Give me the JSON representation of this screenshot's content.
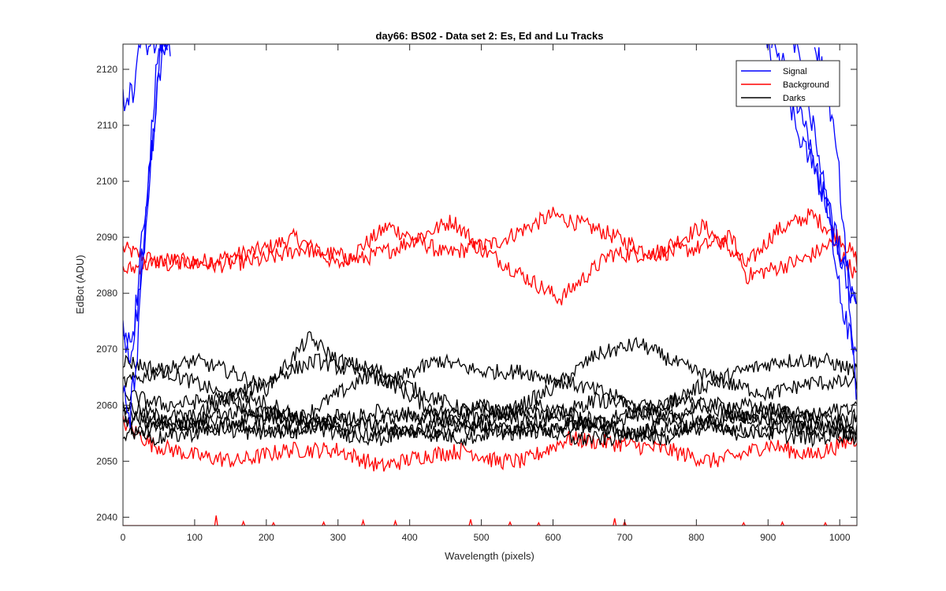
{
  "chart_data": {
    "type": "line",
    "title": "day66: BS02 - Data set 2: Es, Ed and Lu Tracks",
    "xlabel": "Wavelength (pixels)",
    "ylabel": "EdBot (ADU)",
    "xlim": [
      0,
      1024
    ],
    "ylim": [
      2038.5,
      2124.5
    ],
    "xticks": [
      "0",
      "100",
      "200",
      "300",
      "400",
      "500",
      "600",
      "700",
      "800",
      "900",
      "1000"
    ],
    "yticks": [
      "2040",
      "2050",
      "2060",
      "2070",
      "2080",
      "2090",
      "2100",
      "2110",
      "2120"
    ],
    "grid": false,
    "legend_position": "top-right",
    "legend": [
      {
        "label": "Signal",
        "color": "#0000ff"
      },
      {
        "label": "Background",
        "color": "#ff0000"
      },
      {
        "label": "Darks",
        "color": "#000000"
      }
    ],
    "series": [
      {
        "group": "Signal",
        "color": "#0000ff",
        "noise": 2.5,
        "points": [
          [
            0,
            2114
          ],
          [
            8,
            2116
          ],
          [
            14,
            2115
          ],
          [
            20,
            2122
          ],
          [
            26,
            2125
          ],
          [
            40,
            2125
          ],
          [
            55,
            2125
          ],
          [
            62,
            2125
          ]
        ]
      },
      {
        "group": "Signal",
        "color": "#0000ff",
        "noise": 3,
        "points": [
          [
            0,
            2076
          ],
          [
            12,
            2068
          ],
          [
            22,
            2080
          ],
          [
            32,
            2095
          ],
          [
            44,
            2110
          ],
          [
            52,
            2125
          ],
          [
            62,
            2125
          ]
        ]
      },
      {
        "group": "Signal",
        "color": "#0000ff",
        "noise": 3,
        "points": [
          [
            0,
            2062
          ],
          [
            10,
            2058
          ],
          [
            20,
            2070
          ],
          [
            30,
            2088
          ],
          [
            38,
            2102
          ],
          [
            48,
            2115
          ],
          [
            58,
            2125
          ],
          [
            64,
            2125
          ]
        ]
      },
      {
        "group": "Signal",
        "color": "#0000ff",
        "noise": 3,
        "points": [
          [
            0,
            2070
          ],
          [
            14,
            2072
          ],
          [
            24,
            2085
          ],
          [
            34,
            2100
          ],
          [
            46,
            2118
          ],
          [
            56,
            2125
          ],
          [
            66,
            2125
          ]
        ]
      },
      {
        "group": "Signal",
        "color": "#0000ff",
        "noise": 2.5,
        "points": [
          [
            905,
            2125
          ],
          [
            930,
            2118
          ],
          [
            955,
            2108
          ],
          [
            975,
            2098
          ],
          [
            995,
            2088
          ],
          [
            1010,
            2082
          ],
          [
            1024,
            2078
          ]
        ]
      },
      {
        "group": "Signal",
        "color": "#0000ff",
        "noise": 2.5,
        "points": [
          [
            935,
            2125
          ],
          [
            955,
            2115
          ],
          [
            975,
            2102
          ],
          [
            990,
            2090
          ],
          [
            1005,
            2076
          ],
          [
            1015,
            2072
          ],
          [
            1024,
            2068
          ]
        ]
      },
      {
        "group": "Signal",
        "color": "#0000ff",
        "noise": 2.5,
        "points": [
          [
            965,
            2125
          ],
          [
            985,
            2115
          ],
          [
            1000,
            2100
          ],
          [
            1010,
            2085
          ],
          [
            1018,
            2070
          ],
          [
            1024,
            2062
          ]
        ]
      },
      {
        "group": "Signal",
        "color": "#0000ff",
        "noise": 2.5,
        "points": [
          [
            895,
            2125
          ],
          [
            915,
            2120
          ],
          [
            940,
            2110
          ],
          [
            965,
            2102
          ],
          [
            985,
            2095
          ],
          [
            1005,
            2085
          ],
          [
            1024,
            2080
          ]
        ]
      },
      {
        "group": "Background",
        "color": "#ff0000",
        "noise": 1.5,
        "points": [
          [
            0,
            2088
          ],
          [
            60,
            2085
          ],
          [
            130,
            2086
          ],
          [
            200,
            2088
          ],
          [
            240,
            2090
          ],
          [
            300,
            2085
          ],
          [
            370,
            2092
          ],
          [
            450,
            2087
          ],
          [
            520,
            2089
          ],
          [
            600,
            2094
          ],
          [
            670,
            2091
          ],
          [
            740,
            2087
          ],
          [
            810,
            2092
          ],
          [
            870,
            2085
          ],
          [
            910,
            2091
          ],
          [
            960,
            2094
          ],
          [
            1000,
            2090
          ],
          [
            1024,
            2086
          ]
        ]
      },
      {
        "group": "Background",
        "color": "#ff0000",
        "noise": 1.5,
        "points": [
          [
            0,
            2084
          ],
          [
            60,
            2086
          ],
          [
            130,
            2085
          ],
          [
            200,
            2086
          ],
          [
            250,
            2088
          ],
          [
            330,
            2086
          ],
          [
            380,
            2088
          ],
          [
            460,
            2093
          ],
          [
            500,
            2088
          ],
          [
            560,
            2083
          ],
          [
            610,
            2079
          ],
          [
            680,
            2087
          ],
          [
            740,
            2087
          ],
          [
            800,
            2088
          ],
          [
            850,
            2090
          ],
          [
            870,
            2083
          ],
          [
            950,
            2086
          ],
          [
            990,
            2089
          ],
          [
            1024,
            2083
          ]
        ]
      },
      {
        "group": "Background",
        "color": "#ff0000",
        "noise": 1.5,
        "points": [
          [
            0,
            2057
          ],
          [
            40,
            2053
          ],
          [
            100,
            2051
          ],
          [
            160,
            2050
          ],
          [
            230,
            2052
          ],
          [
            300,
            2052
          ],
          [
            360,
            2049
          ],
          [
            420,
            2051
          ],
          [
            480,
            2052
          ],
          [
            520,
            2050
          ],
          [
            560,
            2050
          ],
          [
            620,
            2054
          ],
          [
            700,
            2053
          ],
          [
            760,
            2052
          ],
          [
            820,
            2050
          ],
          [
            860,
            2051
          ],
          [
            900,
            2053
          ],
          [
            960,
            2051
          ],
          [
            1024,
            2054
          ]
        ]
      },
      {
        "group": "Darks",
        "color": "#000000",
        "noise": 1.4,
        "points": [
          [
            0,
            2068
          ],
          [
            60,
            2066
          ],
          [
            120,
            2063
          ],
          [
            180,
            2059
          ],
          [
            250,
            2058
          ],
          [
            300,
            2062
          ],
          [
            350,
            2066
          ],
          [
            420,
            2060
          ],
          [
            480,
            2057
          ],
          [
            550,
            2055
          ],
          [
            620,
            2056
          ],
          [
            680,
            2057
          ],
          [
            740,
            2059
          ],
          [
            800,
            2063
          ],
          [
            860,
            2066
          ],
          [
            920,
            2068
          ],
          [
            980,
            2068
          ],
          [
            1024,
            2066
          ]
        ]
      },
      {
        "group": "Darks",
        "color": "#000000",
        "noise": 1.4,
        "points": [
          [
            0,
            2064
          ],
          [
            50,
            2066
          ],
          [
            100,
            2068
          ],
          [
            150,
            2066
          ],
          [
            200,
            2063
          ],
          [
            260,
            2072
          ],
          [
            300,
            2068
          ],
          [
            360,
            2066
          ],
          [
            420,
            2062
          ],
          [
            480,
            2059
          ],
          [
            540,
            2059
          ],
          [
            600,
            2063
          ],
          [
            660,
            2069
          ],
          [
            720,
            2071
          ],
          [
            780,
            2067
          ],
          [
            840,
            2064
          ],
          [
            900,
            2062
          ],
          [
            960,
            2064
          ],
          [
            1024,
            2064
          ]
        ]
      },
      {
        "group": "Darks",
        "color": "#000000",
        "noise": 1.4,
        "points": [
          [
            0,
            2062
          ],
          [
            60,
            2060
          ],
          [
            130,
            2061
          ],
          [
            180,
            2063
          ],
          [
            230,
            2066
          ],
          [
            270,
            2068
          ],
          [
            320,
            2066
          ],
          [
            370,
            2064
          ],
          [
            440,
            2068
          ],
          [
            500,
            2066
          ],
          [
            560,
            2066
          ],
          [
            620,
            2064
          ],
          [
            680,
            2062
          ],
          [
            740,
            2058
          ],
          [
            800,
            2056
          ],
          [
            860,
            2055
          ],
          [
            920,
            2056
          ],
          [
            980,
            2056
          ],
          [
            1024,
            2058
          ]
        ]
      },
      {
        "group": "Darks",
        "color": "#000000",
        "noise": 1.4,
        "points": [
          [
            0,
            2060
          ],
          [
            50,
            2058
          ],
          [
            100,
            2058
          ],
          [
            160,
            2062
          ],
          [
            210,
            2060
          ],
          [
            260,
            2057
          ],
          [
            320,
            2056
          ],
          [
            380,
            2058
          ],
          [
            440,
            2058
          ],
          [
            500,
            2060
          ],
          [
            560,
            2057
          ],
          [
            620,
            2054
          ],
          [
            680,
            2054
          ],
          [
            740,
            2056
          ],
          [
            800,
            2060
          ],
          [
            860,
            2060
          ],
          [
            920,
            2059
          ],
          [
            980,
            2057
          ],
          [
            1024,
            2054
          ]
        ]
      },
      {
        "group": "Darks",
        "color": "#000000",
        "noise": 1.4,
        "points": [
          [
            0,
            2058
          ],
          [
            60,
            2056
          ],
          [
            120,
            2057
          ],
          [
            180,
            2056
          ],
          [
            240,
            2055
          ],
          [
            300,
            2058
          ],
          [
            360,
            2056
          ],
          [
            420,
            2055
          ],
          [
            480,
            2054
          ],
          [
            540,
            2056
          ],
          [
            600,
            2058
          ],
          [
            660,
            2061
          ],
          [
            720,
            2060
          ],
          [
            780,
            2058
          ],
          [
            840,
            2056
          ],
          [
            900,
            2055
          ],
          [
            960,
            2054
          ],
          [
            1024,
            2055
          ]
        ]
      },
      {
        "group": "Darks",
        "color": "#000000",
        "noise": 1.4,
        "points": [
          [
            0,
            2057
          ],
          [
            40,
            2054
          ],
          [
            100,
            2055
          ],
          [
            160,
            2057
          ],
          [
            220,
            2058
          ],
          [
            280,
            2057
          ],
          [
            340,
            2055
          ],
          [
            400,
            2056
          ],
          [
            460,
            2055
          ],
          [
            520,
            2058
          ],
          [
            580,
            2060
          ],
          [
            640,
            2058
          ],
          [
            700,
            2055
          ],
          [
            760,
            2054
          ],
          [
            820,
            2057
          ],
          [
            880,
            2058
          ],
          [
            940,
            2057
          ],
          [
            1000,
            2055
          ],
          [
            1024,
            2056
          ]
        ]
      },
      {
        "group": "Darks",
        "color": "#000000",
        "noise": 1.4,
        "points": [
          [
            0,
            2059
          ],
          [
            60,
            2057
          ],
          [
            120,
            2056
          ],
          [
            180,
            2055
          ],
          [
            240,
            2056
          ],
          [
            300,
            2057
          ],
          [
            360,
            2059
          ],
          [
            420,
            2058
          ],
          [
            480,
            2056
          ],
          [
            540,
            2055
          ],
          [
            600,
            2056
          ],
          [
            660,
            2057
          ],
          [
            720,
            2059
          ],
          [
            780,
            2061
          ],
          [
            840,
            2059
          ],
          [
            900,
            2057
          ],
          [
            960,
            2058
          ],
          [
            1024,
            2057
          ]
        ]
      },
      {
        "group": "Darks",
        "color": "#000000",
        "noise": 1.4,
        "points": [
          [
            0,
            2055
          ],
          [
            60,
            2056
          ],
          [
            120,
            2058
          ],
          [
            180,
            2059
          ],
          [
            240,
            2057
          ],
          [
            300,
            2055
          ],
          [
            360,
            2054
          ],
          [
            420,
            2056
          ],
          [
            480,
            2058
          ],
          [
            540,
            2059
          ],
          [
            600,
            2058
          ],
          [
            660,
            2056
          ],
          [
            720,
            2055
          ],
          [
            780,
            2056
          ],
          [
            840,
            2058
          ],
          [
            900,
            2059
          ],
          [
            960,
            2058
          ],
          [
            1024,
            2060
          ]
        ]
      }
    ],
    "bottom_trace": {
      "group": "Background",
      "color": "#ff0000",
      "y": 2038.5,
      "spikes": [
        [
          130,
          2040.3
        ],
        [
          168,
          2039.2
        ],
        [
          210,
          2039.0
        ],
        [
          280,
          2039.1
        ],
        [
          335,
          2039.4
        ],
        [
          380,
          2039.3
        ],
        [
          485,
          2039.6
        ],
        [
          540,
          2039.1
        ],
        [
          580,
          2039.0
        ],
        [
          686,
          2039.8
        ],
        [
          700,
          2039.2
        ],
        [
          866,
          2039.0
        ],
        [
          920,
          2039.1
        ],
        [
          980,
          2039.0
        ]
      ]
    }
  }
}
